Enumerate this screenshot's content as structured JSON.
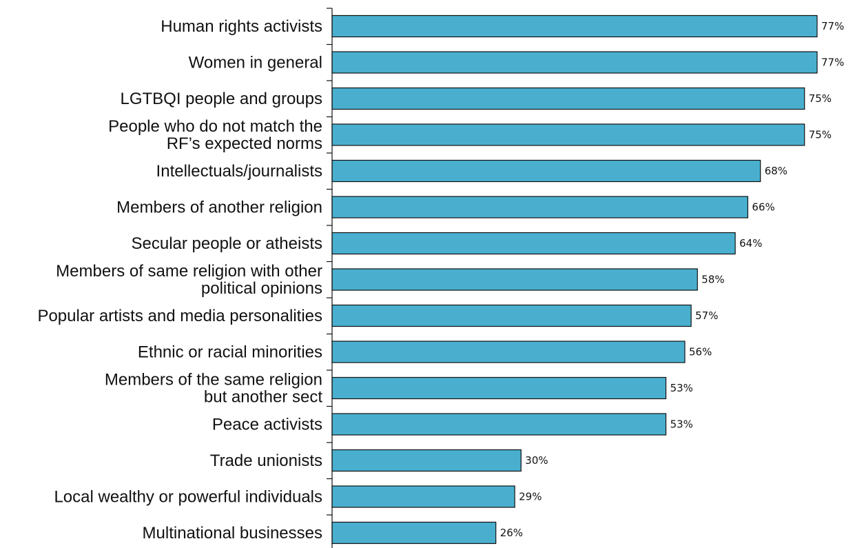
{
  "chart_data": {
    "type": "bar",
    "orientation": "horizontal",
    "categories": [
      "Human rights activists",
      "Women in general",
      "LGTBQI people and groups",
      "People who do not match the\nRF’s expected norms",
      "Intellectuals/journalists",
      "Members of another religion",
      "Secular people or atheists",
      "Members of  same religion with other\npolitical opinions",
      "Popular artists and media personalities",
      "Ethnic or racial minorities",
      "Members of the same religion\nbut another sect",
      "Peace activists",
      "Trade unionists",
      "Local wealthy or powerful individuals",
      "Multinational businesses"
    ],
    "values": [
      77,
      77,
      75,
      75,
      68,
      66,
      64,
      58,
      57,
      56,
      53,
      53,
      30,
      29,
      26
    ],
    "value_labels": [
      "77%",
      "77%",
      "75%",
      "75%",
      "68%",
      "66%",
      "64%",
      "58%",
      "57%",
      "56%",
      "53%",
      "53%",
      "30%",
      "29%",
      "26%"
    ],
    "xlim": [
      0,
      77
    ],
    "bar_color": "#4aafcf",
    "grid": false,
    "title": "",
    "xlabel": "",
    "ylabel": ""
  }
}
